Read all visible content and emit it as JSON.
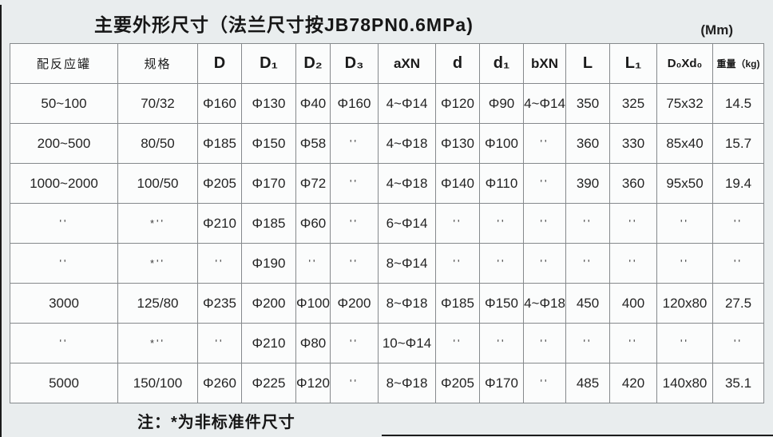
{
  "page": {
    "title": "主要外形尺寸（法兰尺寸按JB78PN0.6MPa)",
    "unit_label": "(Mm)",
    "note": "注：*为非标准件尺寸"
  },
  "table": {
    "columns": [
      "配反应罐",
      "规格",
      "D",
      "D₁",
      "D₂",
      "D₃",
      "aXN",
      "d",
      "d₁",
      "bXN",
      "L",
      "L₁",
      "D₀Xd₀",
      "重量（kg)"
    ],
    "rows": [
      [
        "50~100",
        "70/32",
        "Φ160",
        "Φ130",
        "Φ40",
        "Φ160",
        "4~Φ14",
        "Φ120",
        "Φ90",
        "4~Φ14",
        "350",
        "325",
        "75x32",
        "14.5"
      ],
      [
        "200~500",
        "80/50",
        "Φ185",
        "Φ150",
        "Φ58",
        "''",
        "4~Φ18",
        "Φ130",
        "Φ100",
        "''",
        "360",
        "330",
        "85x40",
        "15.7"
      ],
      [
        "1000~2000",
        "100/50",
        "Φ205",
        "Φ170",
        "Φ72",
        "''",
        "4~Φ18",
        "Φ140",
        "Φ110",
        "''",
        "390",
        "360",
        "95x50",
        "19.4"
      ],
      [
        "''",
        "*''",
        "Φ210",
        "Φ185",
        "Φ60",
        "''",
        "6~Φ14",
        "''",
        "''",
        "''",
        "''",
        "''",
        "''",
        "''"
      ],
      [
        "''",
        "*''",
        "''",
        "Φ190",
        "''",
        "''",
        "8~Φ14",
        "''",
        "''",
        "''",
        "''",
        "''",
        "''",
        "''"
      ],
      [
        "3000",
        "125/80",
        "Φ235",
        "Φ200",
        "Φ100",
        "Φ200",
        "8~Φ18",
        "Φ185",
        "Φ150",
        "4~Φ18",
        "450",
        "400",
        "120x80",
        "27.5"
      ],
      [
        "''",
        "*''",
        "''",
        "Φ210",
        "Φ80",
        "''",
        "10~Φ14",
        "''",
        "''",
        "''",
        "''",
        "''",
        "''",
        "''"
      ],
      [
        "5000",
        "150/100",
        "Φ260",
        "Φ225",
        "Φ120",
        "''",
        "8~Φ18",
        "Φ205",
        "Φ170",
        "''",
        "485",
        "420",
        "140x80",
        "35.1"
      ]
    ]
  }
}
